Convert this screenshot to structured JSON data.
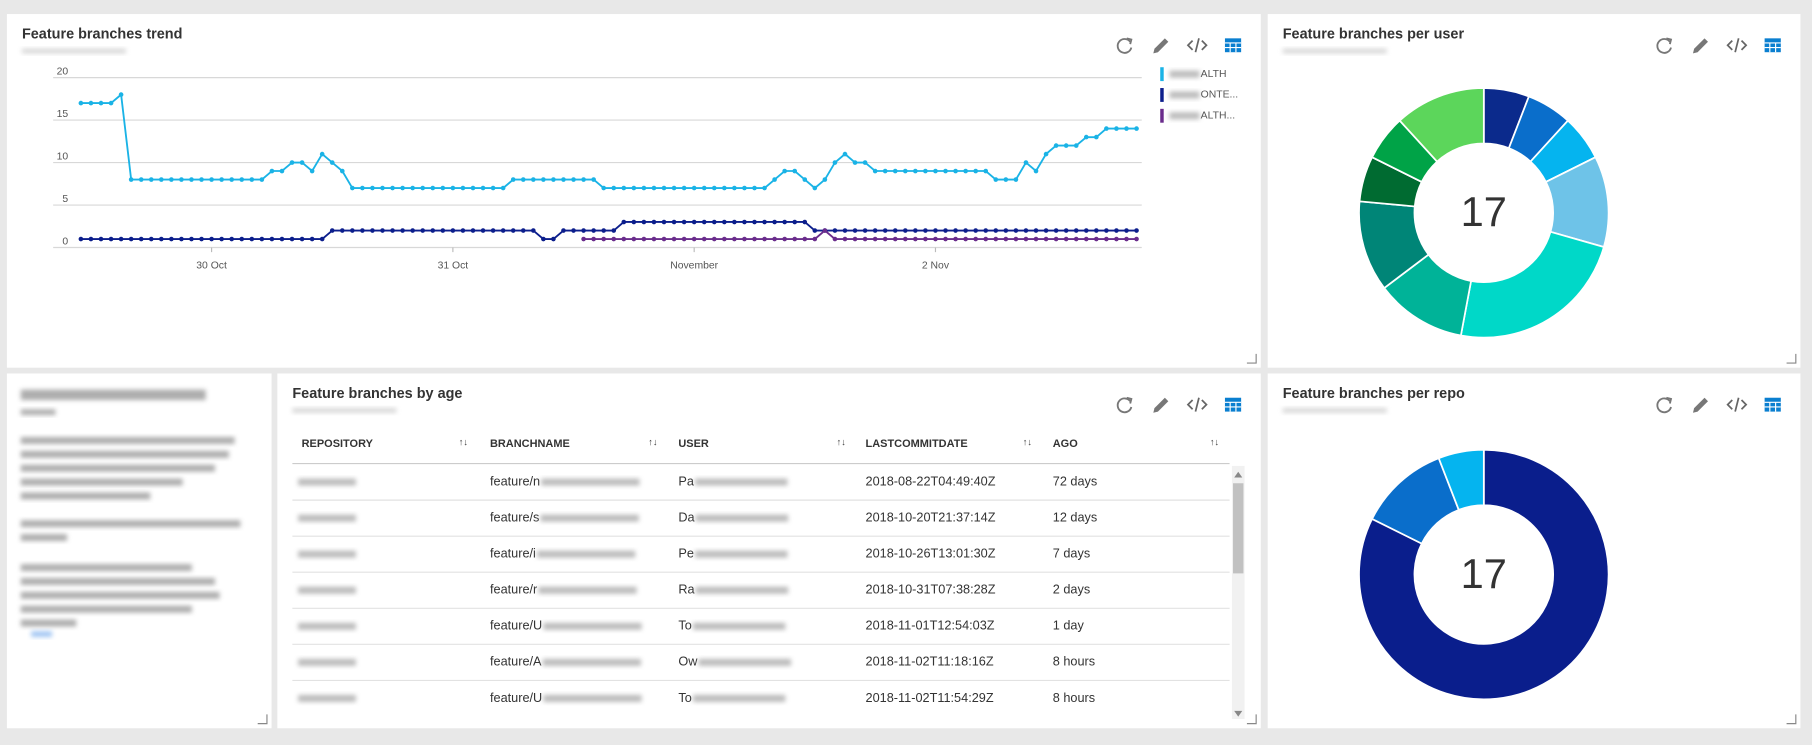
{
  "trend": {
    "title": "Feature branches trend",
    "chart_data": {
      "type": "line",
      "categories": [
        null,
        null,
        null,
        null,
        null,
        null,
        null,
        null,
        null,
        null,
        null,
        null,
        null,
        "30 Oct",
        null,
        null,
        null,
        null,
        null,
        null,
        null,
        null,
        null,
        null,
        null,
        null,
        null,
        null,
        null,
        null,
        null,
        null,
        null,
        null,
        null,
        null,
        null,
        "31 Oct",
        null,
        null,
        null,
        null,
        null,
        null,
        null,
        null,
        null,
        null,
        null,
        null,
        null,
        null,
        null,
        null,
        null,
        null,
        null,
        null,
        null,
        null,
        null,
        "November",
        null,
        null,
        null,
        null,
        null,
        null,
        null,
        null,
        null,
        null,
        null,
        null,
        null,
        null,
        null,
        null,
        null,
        null,
        null,
        null,
        null,
        null,
        null,
        "2 Nov",
        null,
        null,
        null,
        null,
        null,
        null,
        null,
        null,
        null,
        null,
        null,
        null,
        null,
        null,
        null,
        null,
        null,
        null,
        null,
        null
      ],
      "series": [
        {
          "name": "ALTH",
          "color": "#1ab3e6",
          "values": [
            17,
            17,
            17,
            17,
            18,
            8,
            8,
            8,
            8,
            8,
            8,
            8,
            8,
            8,
            8,
            8,
            8,
            8,
            8,
            9,
            9,
            10,
            10,
            9,
            11,
            10,
            9,
            7,
            7,
            7,
            7,
            7,
            7,
            7,
            7,
            7,
            7,
            7,
            7,
            7,
            7,
            7,
            7,
            8,
            8,
            8,
            8,
            8,
            8,
            8,
            8,
            8,
            7,
            7,
            7,
            7,
            7,
            7,
            7,
            7,
            7,
            7,
            7,
            7,
            7,
            7,
            7,
            7,
            7,
            8,
            9,
            9,
            8,
            7,
            8,
            10,
            11,
            10,
            10,
            9,
            9,
            9,
            9,
            9,
            9,
            9,
            9,
            9,
            9,
            9,
            9,
            8,
            8,
            8,
            10,
            9,
            11,
            12,
            12,
            12,
            13,
            13,
            14,
            14,
            14,
            14
          ]
        },
        {
          "name": "ONTE...",
          "color": "#0c1e8c",
          "values": [
            1,
            1,
            1,
            1,
            1,
            1,
            1,
            1,
            1,
            1,
            1,
            1,
            1,
            1,
            1,
            1,
            1,
            1,
            1,
            1,
            1,
            1,
            1,
            1,
            1,
            2,
            2,
            2,
            2,
            2,
            2,
            2,
            2,
            2,
            2,
            2,
            2,
            2,
            2,
            2,
            2,
            2,
            2,
            2,
            2,
            2,
            1,
            1,
            2,
            2,
            2,
            2,
            2,
            2,
            3,
            3,
            3,
            3,
            3,
            3,
            3,
            3,
            3,
            3,
            3,
            3,
            3,
            3,
            3,
            3,
            3,
            3,
            3,
            2,
            2,
            2,
            2,
            2,
            2,
            2,
            2,
            2,
            2,
            2,
            2,
            2,
            2,
            2,
            2,
            2,
            2,
            2,
            2,
            2,
            2,
            2,
            2,
            2,
            2,
            2,
            2,
            2,
            2,
            2,
            2,
            2
          ]
        },
        {
          "name": "ALTH...",
          "color": "#6a2c8c",
          "values": [
            null,
            null,
            null,
            null,
            null,
            null,
            null,
            null,
            null,
            null,
            null,
            null,
            null,
            null,
            null,
            null,
            null,
            null,
            null,
            null,
            null,
            null,
            null,
            null,
            null,
            null,
            null,
            null,
            null,
            null,
            null,
            null,
            null,
            null,
            null,
            null,
            null,
            null,
            null,
            null,
            null,
            null,
            null,
            null,
            null,
            null,
            null,
            null,
            null,
            null,
            1,
            1,
            1,
            1,
            1,
            1,
            1,
            1,
            1,
            1,
            1,
            1,
            1,
            1,
            1,
            1,
            1,
            1,
            1,
            1,
            1,
            1,
            1,
            1,
            2,
            1,
            1,
            1,
            1,
            1,
            1,
            1,
            1,
            1,
            1,
            1,
            1,
            1,
            1,
            1,
            1,
            1,
            1,
            1,
            1,
            1,
            1,
            1,
            1,
            1,
            1,
            1,
            1,
            1,
            1,
            1
          ]
        }
      ],
      "ylim": [
        0,
        20
      ],
      "yticks": [
        0,
        5,
        10,
        15,
        20
      ],
      "grid": true,
      "legend": "right"
    }
  },
  "per_user": {
    "title": "Feature branches per user",
    "chart_data": {
      "type": "donut",
      "values": [
        1,
        1,
        1,
        2,
        4,
        2,
        2,
        1,
        1,
        2
      ],
      "colors": [
        "#0b2a8c",
        "#0a6ecb",
        "#05b4ef",
        "#6ec3e8",
        "#00d8c8",
        "#00b398",
        "#008577",
        "#006b31",
        "#00a347",
        "#5cd65b"
      ],
      "total": 17
    }
  },
  "by_age": {
    "title": "Feature branches by age",
    "table": {
      "header": [
        "REPOSITORY",
        "BRANCHNAME",
        "USER",
        "LASTCOMMITDATE",
        "AGO"
      ],
      "rows": [
        [
          "feature/n",
          "Pa",
          "2018-08-22T04:49:40Z",
          "72 days"
        ],
        [
          "feature/s",
          "Da",
          "2018-10-20T21:37:14Z",
          "12 days"
        ],
        [
          "feature/i",
          "Pe",
          "2018-10-26T13:01:30Z",
          "7 days"
        ],
        [
          "feature/r",
          "Ra",
          "2018-10-31T07:38:28Z",
          "2 days"
        ],
        [
          "feature/U",
          "To",
          "2018-11-01T12:54:03Z",
          "1 day"
        ],
        [
          "feature/A",
          "Ow",
          "2018-11-02T11:18:16Z",
          "8 hours"
        ],
        [
          "feature/U",
          "To",
          "2018-11-02T11:54:29Z",
          "8 hours"
        ]
      ]
    }
  },
  "per_repo": {
    "title": "Feature branches per repo",
    "chart_data": {
      "type": "donut",
      "values": [
        14,
        2,
        1
      ],
      "colors": [
        "#0a1e8c",
        "#0a6ecb",
        "#05b4ef"
      ],
      "total": 17
    }
  }
}
